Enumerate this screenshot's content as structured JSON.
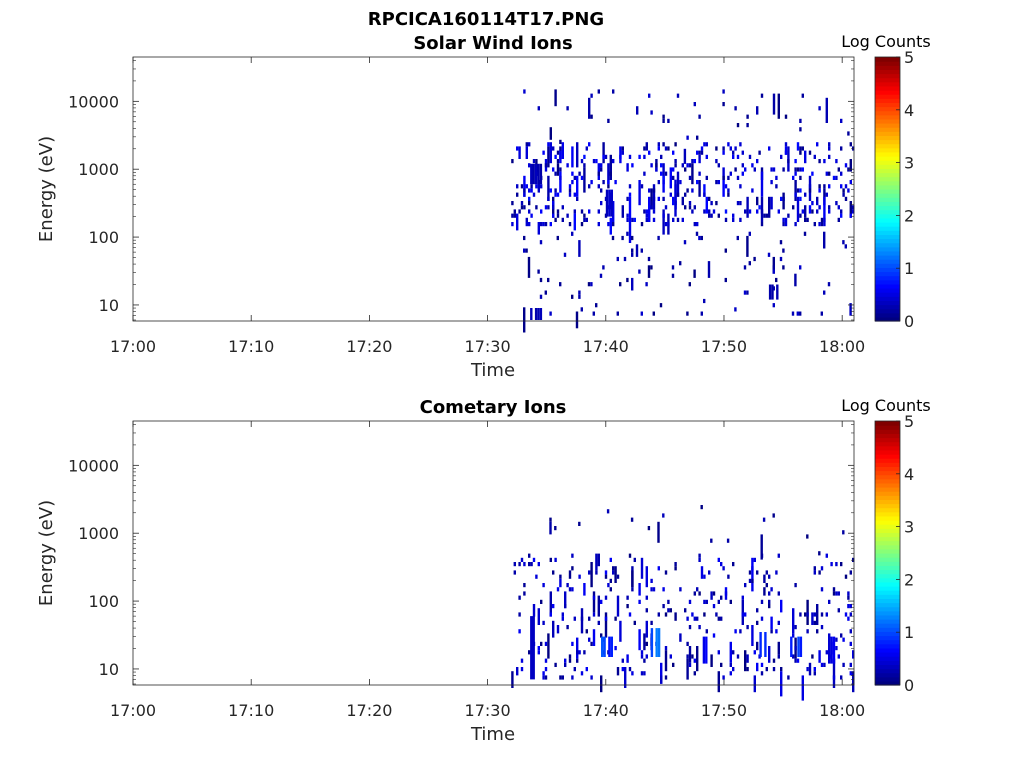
{
  "figure": {
    "title": "RPCICA160114T17.PNG"
  },
  "chart_data": [
    {
      "type": "heatmap",
      "title": "Solar Wind Ions",
      "xlabel": "Time",
      "ylabel": "Energy (eV)",
      "x_ticks": [
        "17:00",
        "17:10",
        "17:20",
        "17:30",
        "17:40",
        "17:50",
        "18:00"
      ],
      "xlim": [
        "17:00",
        "18:01"
      ],
      "y_scale": "log",
      "y_ticks": [
        "10",
        "100",
        "1000",
        "10000"
      ],
      "ylim": [
        5.8,
        45000
      ],
      "colorbar": {
        "label": "Log Counts",
        "ticks": [
          "0",
          "1",
          "2",
          "3",
          "4",
          "5"
        ],
        "range": [
          0,
          5
        ],
        "colormap": "jet"
      },
      "grid": false,
      "activity": {
        "start": "17:32",
        "end": "18:01",
        "bands": [
          {
            "from": "17:32",
            "to": "18:01",
            "energy": [
              150,
              2500
            ],
            "density": 0.42,
            "level_max": 0.7
          },
          {
            "from": "17:32",
            "to": "18:01",
            "energy": [
              2500,
              15000
            ],
            "density": 0.07,
            "level_max": 0.4
          },
          {
            "from": "17:33",
            "to": "18:01",
            "energy": [
              8,
              120
            ],
            "density": 0.09,
            "level_max": 0.4
          }
        ],
        "features": [
          {
            "time": "17:34",
            "energy": [
              600,
              1200
            ],
            "level": 0.3
          },
          {
            "time": "17:34",
            "energy": [
              6,
              9
            ],
            "level": 0.3
          },
          {
            "time": "17:40",
            "energy": [
              200,
              500
            ],
            "level": 0.4
          },
          {
            "time": "17:46",
            "energy": [
              200,
              700
            ],
            "level": 0.5
          },
          {
            "time": "17:47",
            "energy": [
              1200,
              2000
            ],
            "level": 0.4
          },
          {
            "time": "17:53",
            "energy": [
              200,
              600
            ],
            "level": 0.9
          },
          {
            "time": "17:54",
            "energy": [
              12,
              20
            ],
            "level": 0.3
          }
        ]
      }
    },
    {
      "type": "heatmap",
      "title": "Cometary Ions",
      "xlabel": "Time",
      "ylabel": "Energy (eV)",
      "x_ticks": [
        "17:00",
        "17:10",
        "17:20",
        "17:30",
        "17:40",
        "17:50",
        "18:00"
      ],
      "xlim": [
        "17:00",
        "18:01"
      ],
      "y_scale": "log",
      "y_ticks": [
        "10",
        "100",
        "1000",
        "10000"
      ],
      "ylim": [
        5.8,
        45000
      ],
      "colorbar": {
        "label": "Log Counts",
        "ticks": [
          "0",
          "1",
          "2",
          "3",
          "4",
          "5"
        ],
        "range": [
          0,
          5
        ],
        "colormap": "jet"
      },
      "grid": false,
      "activity": {
        "start": "17:32",
        "end": "18:01",
        "bands": [
          {
            "from": "17:32",
            "to": "18:01",
            "energy": [
              8,
              500
            ],
            "density": 0.25,
            "level_max": 0.6
          },
          {
            "from": "17:34",
            "to": "18:00",
            "energy": [
              500,
              3000
            ],
            "density": 0.04,
            "level_max": 0.3
          }
        ],
        "features": [
          {
            "time": "17:34",
            "energy": [
              7,
              60
            ],
            "level": 0.5
          },
          {
            "time": "17:40",
            "energy": [
              15,
              30
            ],
            "level": 1.1
          },
          {
            "time": "17:44",
            "energy": [
              15,
              40
            ],
            "level": 1.3
          },
          {
            "time": "17:48",
            "energy": [
              12,
              30
            ],
            "level": 0.6
          },
          {
            "time": "17:53",
            "energy": [
              15,
              35
            ],
            "level": 0.9
          },
          {
            "time": "17:56",
            "energy": [
              15,
              30
            ],
            "level": 1.1
          },
          {
            "time": "17:59",
            "energy": [
              12,
              30
            ],
            "level": 0.6
          }
        ]
      }
    }
  ]
}
